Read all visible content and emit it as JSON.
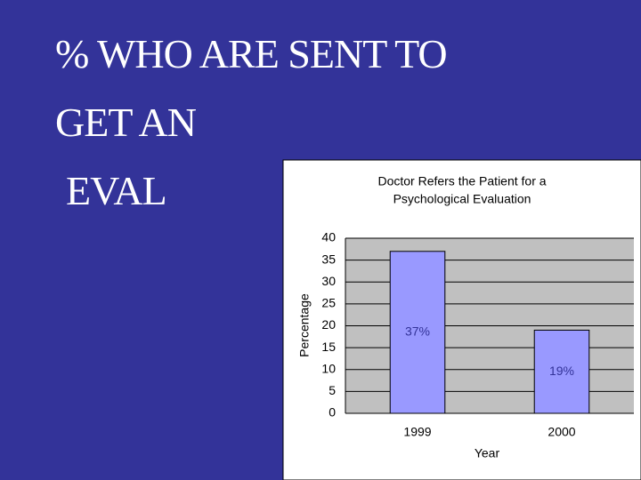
{
  "slide_title": [
    "% WHO ARE SENT TO",
    "GET AN",
    "EVAL"
  ],
  "chart_data": {
    "type": "bar",
    "title": [
      "Doctor Refers the Patient for a",
      "Psychological Evaluation"
    ],
    "x_label": "Year",
    "y_label": "Percentage",
    "categories": [
      "1999",
      "2000"
    ],
    "values": [
      37,
      19
    ],
    "value_labels": [
      "37%",
      "19%"
    ],
    "color": "#9999ff",
    "ylim": [
      0,
      40
    ],
    "yticks": [
      0,
      5,
      10,
      15,
      20,
      25,
      30,
      35,
      40
    ],
    "grid": true
  }
}
